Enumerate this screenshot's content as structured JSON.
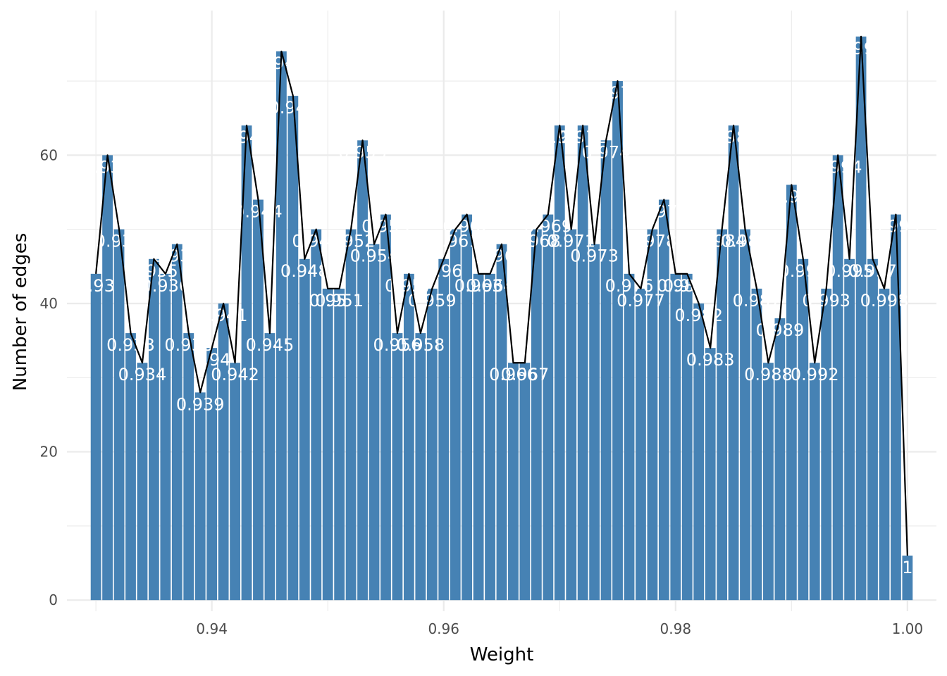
{
  "chart_data": {
    "type": "bar",
    "xlabel": "Weight",
    "ylabel": "Number of edges",
    "xlim": [
      0.9275,
      1.0025
    ],
    "ylim": [
      -1.5,
      79.5
    ],
    "x_ticks": [
      0.94,
      0.96,
      0.98,
      1.0
    ],
    "x_tick_labels": [
      "0.94",
      "0.96",
      "0.98",
      "1.00"
    ],
    "y_ticks": [
      0,
      20,
      40,
      60
    ],
    "y_tick_labels": [
      "0",
      "20",
      "40",
      "60"
    ],
    "grid": true,
    "legend": "none",
    "bar_color": "#4682b4",
    "line_color": "#000000",
    "label_color": "#ffffff",
    "x": [
      0.93,
      0.931,
      0.932,
      0.933,
      0.934,
      0.935,
      0.936,
      0.937,
      0.938,
      0.939,
      0.94,
      0.941,
      0.942,
      0.943,
      0.944,
      0.945,
      0.946,
      0.947,
      0.948,
      0.949,
      0.95,
      0.951,
      0.952,
      0.953,
      0.954,
      0.955,
      0.956,
      0.957,
      0.958,
      0.959,
      0.96,
      0.961,
      0.962,
      0.963,
      0.964,
      0.965,
      0.966,
      0.967,
      0.968,
      0.969,
      0.97,
      0.971,
      0.972,
      0.973,
      0.974,
      0.975,
      0.976,
      0.977,
      0.978,
      0.979,
      0.98,
      0.981,
      0.982,
      0.983,
      0.984,
      0.985,
      0.986,
      0.987,
      0.988,
      0.989,
      0.99,
      0.991,
      0.992,
      0.993,
      0.994,
      0.995,
      0.996,
      0.997,
      0.998,
      0.999,
      1.0
    ],
    "values": [
      44,
      60,
      50,
      36,
      32,
      46,
      44,
      48,
      36,
      28,
      34,
      40,
      32,
      64,
      54,
      36,
      74,
      68,
      46,
      50,
      42,
      42,
      50,
      62,
      48,
      52,
      36,
      44,
      36,
      42,
      46,
      50,
      52,
      44,
      44,
      48,
      32,
      32,
      50,
      52,
      64,
      50,
      64,
      48,
      62,
      70,
      44,
      42,
      50,
      54,
      44,
      44,
      40,
      34,
      50,
      64,
      50,
      42,
      32,
      38,
      56,
      46,
      32,
      42,
      60,
      46,
      76,
      46,
      42,
      52,
      6
    ],
    "labels": [
      "0.93",
      "0.931",
      "0.932",
      "0.933",
      "0.934",
      "0.935",
      "0.936",
      "0.937",
      "0.938",
      "0.939",
      "0.94",
      "0.941",
      "0.942",
      "0.943",
      "0.944",
      "0.945",
      "0.946",
      "0.947",
      "0.948",
      "0.949",
      "0.95",
      "0.951",
      "0.952",
      "0.953",
      "0.954",
      "0.955",
      "0.956",
      "0.957",
      "0.958",
      "0.959",
      "0.96",
      "0.961",
      "0.962",
      "0.963",
      "0.964",
      "0.965",
      "0.966",
      "0.967",
      "0.968",
      "0.969",
      "0.97",
      "0.971",
      "0.972",
      "0.973",
      "0.974",
      "0.975",
      "0.976",
      "0.977",
      "0.978",
      "0.979",
      "0.98",
      "0.981",
      "0.982",
      "0.983",
      "0.984",
      "0.985",
      "0.986",
      "0.987",
      "0.988",
      "0.989",
      "0.99",
      "0.991",
      "0.992",
      "0.993",
      "0.994",
      "0.995",
      "0.996",
      "0.997",
      "0.998",
      "0.999",
      "1"
    ]
  }
}
